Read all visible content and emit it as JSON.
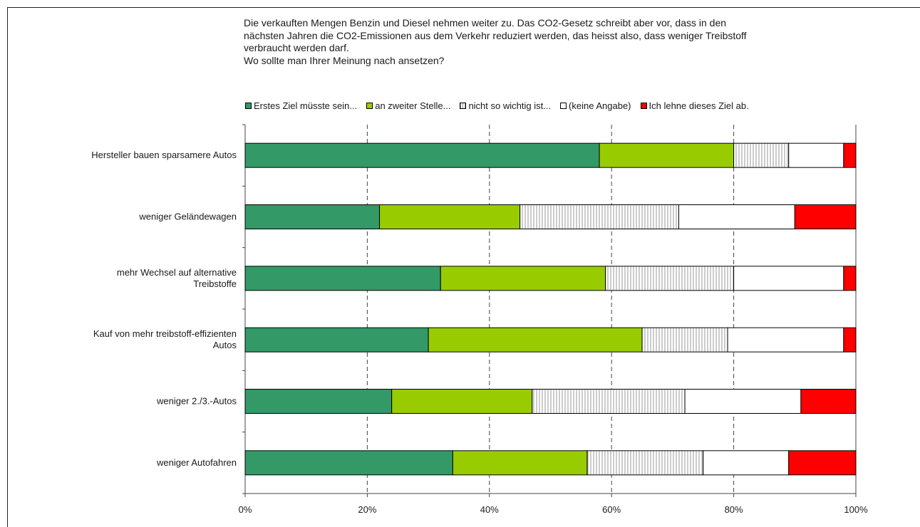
{
  "title_lines": [
    "Die verkauften Mengen Benzin und Diesel nehmen weiter zu. Das CO2-Gesetz schreibt aber vor, dass in den",
    "nächsten Jahren die CO2-Emissionen aus dem Verkehr reduziert werden, das heisst also, dass weniger Treibstoff",
    "verbraucht werden darf.",
    "Wo sollte man Ihrer Meinung nach ansetzen?"
  ],
  "chart_data": {
    "type": "bar",
    "orientation": "horizontal",
    "stacked": "percent",
    "categories": [
      [
        "Hersteller bauen sparsamere Autos"
      ],
      [
        "weniger Geländewagen"
      ],
      [
        "mehr Wechsel auf alternative",
        "Treibstoffe"
      ],
      [
        "Kauf von mehr treibstoff-effizienten",
        "Autos"
      ],
      [
        "weniger 2./3.-Autos"
      ],
      [
        "weniger Autofahren"
      ]
    ],
    "series": [
      {
        "name": "Erstes Ziel müsste sein...",
        "color": "#339966",
        "pattern": "solid",
        "values": [
          58,
          22,
          32,
          30,
          24,
          34
        ]
      },
      {
        "name": "an zweiter Stelle...",
        "color": "#99cc00",
        "pattern": "solid",
        "values": [
          22,
          23,
          27,
          35,
          23,
          22
        ]
      },
      {
        "name": "nicht so wichtig ist...",
        "color": "#ffffff",
        "pattern": "vertical-lines",
        "values": [
          9,
          26,
          21,
          14,
          25,
          19
        ]
      },
      {
        "name": "(keine Angabe)",
        "color": "#ffffff",
        "pattern": "solid",
        "values": [
          9,
          19,
          18,
          19,
          19,
          14
        ]
      },
      {
        "name": "Ich lehne dieses Ziel ab.",
        "color": "#ff0000",
        "pattern": "solid",
        "values": [
          2,
          10,
          2,
          2,
          9,
          11
        ]
      }
    ],
    "xlim": [
      0,
      100
    ],
    "x_ticks": [
      "0%",
      "20%",
      "40%",
      "60%",
      "80%",
      "100%"
    ],
    "grid": "vertical-dashed",
    "legend": "top"
  }
}
